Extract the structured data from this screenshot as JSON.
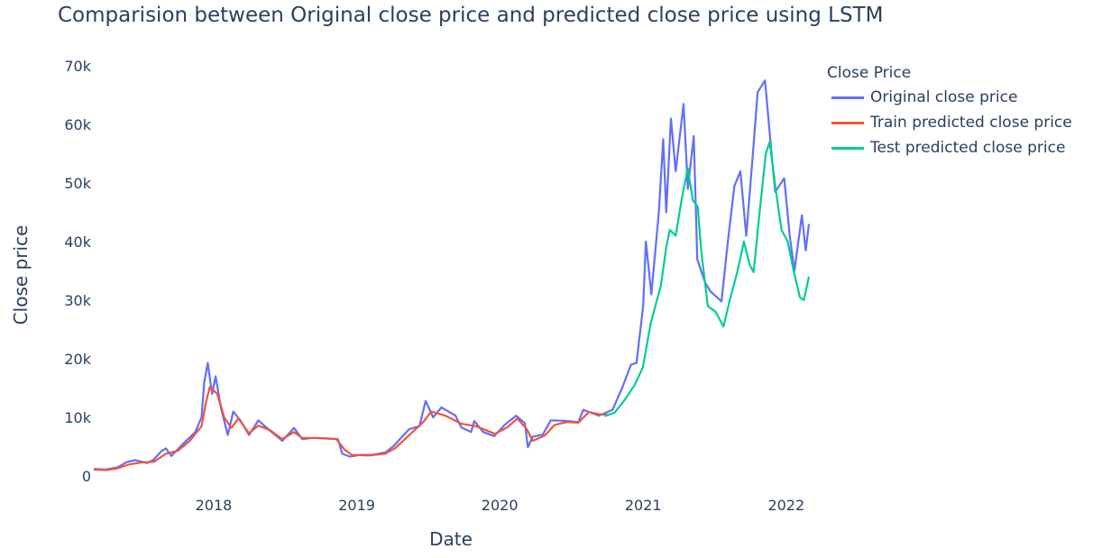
{
  "chart_data": {
    "type": "line",
    "title": "Comparision between Original close price and predicted close price using LSTM",
    "xlabel": "Date",
    "ylabel": "Close price",
    "legend_title": "Close Price",
    "legend_position": "top-right",
    "grid": false,
    "x_range": [
      "2017-03-01",
      "2022-02-28"
    ],
    "ylim": [
      0,
      70000
    ],
    "x_ticks": [
      "2018",
      "2019",
      "2020",
      "2021",
      "2022"
    ],
    "y_ticks": [
      "0",
      "10k",
      "20k",
      "30k",
      "40k",
      "50k",
      "60k",
      "70k"
    ],
    "series": [
      {
        "name": "Original close price",
        "color": "#636efa",
        "points": [
          [
            "2017-03-01",
            1200
          ],
          [
            "2017-04-01",
            1100
          ],
          [
            "2017-05-01",
            1500
          ],
          [
            "2017-05-25",
            2400
          ],
          [
            "2017-06-15",
            2700
          ],
          [
            "2017-07-15",
            2200
          ],
          [
            "2017-08-01",
            2800
          ],
          [
            "2017-08-20",
            4200
          ],
          [
            "2017-09-01",
            4700
          ],
          [
            "2017-09-15",
            3400
          ],
          [
            "2017-10-15",
            5500
          ],
          [
            "2017-11-15",
            7500
          ],
          [
            "2017-12-01",
            10000
          ],
          [
            "2017-12-08",
            16000
          ],
          [
            "2017-12-17",
            19300
          ],
          [
            "2017-12-28",
            14000
          ],
          [
            "2018-01-06",
            17000
          ],
          [
            "2018-01-20",
            11500
          ],
          [
            "2018-02-06",
            7000
          ],
          [
            "2018-02-20",
            11000
          ],
          [
            "2018-03-10",
            9500
          ],
          [
            "2018-04-01",
            7000
          ],
          [
            "2018-04-25",
            9500
          ],
          [
            "2018-05-20",
            8000
          ],
          [
            "2018-06-25",
            6000
          ],
          [
            "2018-07-25",
            8200
          ],
          [
            "2018-08-15",
            6300
          ],
          [
            "2018-09-10",
            6500
          ],
          [
            "2018-10-20",
            6400
          ],
          [
            "2018-11-14",
            6300
          ],
          [
            "2018-11-25",
            3800
          ],
          [
            "2018-12-15",
            3300
          ],
          [
            "2019-01-10",
            3600
          ],
          [
            "2019-02-10",
            3600
          ],
          [
            "2019-03-15",
            4000
          ],
          [
            "2019-04-05",
            5100
          ],
          [
            "2019-05-15",
            8000
          ],
          [
            "2019-06-10",
            8500
          ],
          [
            "2019-06-26",
            12800
          ],
          [
            "2019-07-15",
            10000
          ],
          [
            "2019-08-05",
            11700
          ],
          [
            "2019-09-10",
            10300
          ],
          [
            "2019-09-25",
            8300
          ],
          [
            "2019-10-20",
            7500
          ],
          [
            "2019-10-28",
            9400
          ],
          [
            "2019-11-20",
            7500
          ],
          [
            "2019-12-18",
            6800
          ],
          [
            "2020-01-15",
            8800
          ],
          [
            "2020-02-12",
            10300
          ],
          [
            "2020-03-05",
            9000
          ],
          [
            "2020-03-13",
            4900
          ],
          [
            "2020-03-25",
            6700
          ],
          [
            "2020-04-20",
            7100
          ],
          [
            "2020-05-10",
            9500
          ],
          [
            "2020-06-15",
            9400
          ],
          [
            "2020-07-20",
            9200
          ],
          [
            "2020-08-01",
            11300
          ],
          [
            "2020-09-10",
            10300
          ],
          [
            "2020-10-15",
            11300
          ],
          [
            "2020-11-10",
            15300
          ],
          [
            "2020-12-01",
            19000
          ],
          [
            "2020-12-15",
            19300
          ],
          [
            "2021-01-01",
            29000
          ],
          [
            "2021-01-08",
            40000
          ],
          [
            "2021-01-22",
            31000
          ],
          [
            "2021-02-10",
            45000
          ],
          [
            "2021-02-21",
            57500
          ],
          [
            "2021-03-01",
            45000
          ],
          [
            "2021-03-13",
            61000
          ],
          [
            "2021-03-25",
            52000
          ],
          [
            "2021-04-14",
            63500
          ],
          [
            "2021-04-25",
            49000
          ],
          [
            "2021-05-10",
            58000
          ],
          [
            "2021-05-19",
            37000
          ],
          [
            "2021-06-08",
            33000
          ],
          [
            "2021-06-22",
            31500
          ],
          [
            "2021-07-20",
            29800
          ],
          [
            "2021-08-05",
            40000
          ],
          [
            "2021-08-22",
            49500
          ],
          [
            "2021-09-06",
            52000
          ],
          [
            "2021-09-21",
            41000
          ],
          [
            "2021-10-08",
            55000
          ],
          [
            "2021-10-20",
            65500
          ],
          [
            "2021-11-08",
            67500
          ],
          [
            "2021-11-26",
            54000
          ],
          [
            "2021-12-04",
            48500
          ],
          [
            "2021-12-27",
            50800
          ],
          [
            "2022-01-10",
            41000
          ],
          [
            "2022-01-22",
            35000
          ],
          [
            "2022-02-10",
            44500
          ],
          [
            "2022-02-20",
            38500
          ],
          [
            "2022-02-28",
            43000
          ]
        ]
      },
      {
        "name": "Train predicted close price",
        "color": "#ef553b",
        "points": [
          [
            "2017-03-01",
            1100
          ],
          [
            "2017-04-01",
            1000
          ],
          [
            "2017-05-01",
            1300
          ],
          [
            "2017-06-01",
            2000
          ],
          [
            "2017-07-01",
            2300
          ],
          [
            "2017-08-01",
            2400
          ],
          [
            "2017-09-01",
            3800
          ],
          [
            "2017-10-01",
            4300
          ],
          [
            "2017-11-01",
            6000
          ],
          [
            "2017-12-01",
            8500
          ],
          [
            "2017-12-12",
            12500
          ],
          [
            "2017-12-22",
            15200
          ],
          [
            "2018-01-10",
            14000
          ],
          [
            "2018-01-28",
            10000
          ],
          [
            "2018-02-15",
            8200
          ],
          [
            "2018-03-05",
            9800
          ],
          [
            "2018-04-01",
            7300
          ],
          [
            "2018-04-25",
            8600
          ],
          [
            "2018-05-25",
            7800
          ],
          [
            "2018-06-25",
            6300
          ],
          [
            "2018-07-25",
            7500
          ],
          [
            "2018-08-15",
            6500
          ],
          [
            "2018-09-15",
            6500
          ],
          [
            "2018-11-10",
            6300
          ],
          [
            "2018-12-01",
            4500
          ],
          [
            "2018-12-20",
            3600
          ],
          [
            "2019-02-01",
            3500
          ],
          [
            "2019-03-15",
            3800
          ],
          [
            "2019-04-10",
            4800
          ],
          [
            "2019-05-20",
            7300
          ],
          [
            "2019-06-20",
            9200
          ],
          [
            "2019-07-10",
            11000
          ],
          [
            "2019-08-15",
            10300
          ],
          [
            "2019-09-25",
            8900
          ],
          [
            "2019-11-01",
            8500
          ],
          [
            "2019-12-20",
            7200
          ],
          [
            "2020-01-20",
            8300
          ],
          [
            "2020-02-15",
            9800
          ],
          [
            "2020-03-10",
            8000
          ],
          [
            "2020-03-25",
            6000
          ],
          [
            "2020-04-25",
            6900
          ],
          [
            "2020-05-20",
            8700
          ],
          [
            "2020-06-20",
            9200
          ],
          [
            "2020-07-20",
            9100
          ],
          [
            "2020-08-15",
            10900
          ],
          [
            "2020-09-15",
            10500
          ],
          [
            "2020-10-01",
            10500
          ]
        ]
      },
      {
        "name": "Test predicted close price",
        "color": "#00cc96",
        "points": [
          [
            "2020-09-25",
            10200
          ],
          [
            "2020-10-20",
            10800
          ],
          [
            "2020-11-15",
            13000
          ],
          [
            "2020-12-10",
            15500
          ],
          [
            "2020-12-31",
            18500
          ],
          [
            "2021-01-20",
            26000
          ],
          [
            "2021-02-01",
            29000
          ],
          [
            "2021-02-15",
            32500
          ],
          [
            "2021-03-01",
            39000
          ],
          [
            "2021-03-10",
            42000
          ],
          [
            "2021-03-25",
            41000
          ],
          [
            "2021-04-10",
            47500
          ],
          [
            "2021-04-25",
            52500
          ],
          [
            "2021-05-08",
            47000
          ],
          [
            "2021-05-20",
            46000
          ],
          [
            "2021-05-30",
            38000
          ],
          [
            "2021-06-15",
            29000
          ],
          [
            "2021-07-05",
            28000
          ],
          [
            "2021-07-25",
            25500
          ],
          [
            "2021-08-10",
            30000
          ],
          [
            "2021-08-30",
            35000
          ],
          [
            "2021-09-15",
            40000
          ],
          [
            "2021-09-30",
            36000
          ],
          [
            "2021-10-10",
            34800
          ],
          [
            "2021-10-25",
            45000
          ],
          [
            "2021-11-10",
            55000
          ],
          [
            "2021-11-20",
            57000
          ],
          [
            "2021-12-05",
            49000
          ],
          [
            "2021-12-20",
            42000
          ],
          [
            "2022-01-05",
            40000
          ],
          [
            "2022-01-20",
            35000
          ],
          [
            "2022-02-05",
            30500
          ],
          [
            "2022-02-15",
            30000
          ],
          [
            "2022-02-28",
            34000
          ]
        ]
      }
    ]
  }
}
